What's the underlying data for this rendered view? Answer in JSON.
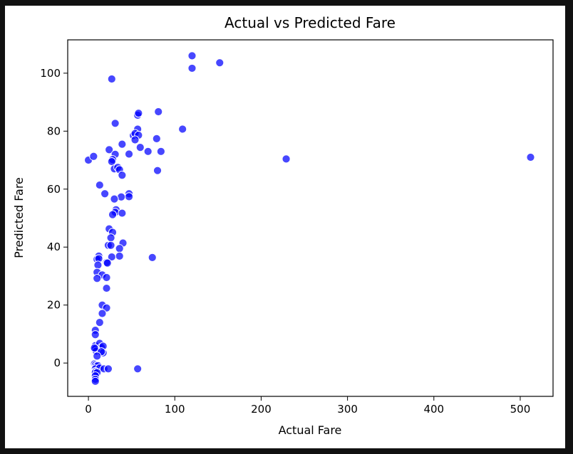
{
  "chart_data": {
    "type": "scatter",
    "title": "Actual vs Predicted Fare",
    "xlabel": "Actual Fare",
    "ylabel": "Predicted Fare",
    "xlim": [
      -24,
      538
    ],
    "ylim": [
      -11.5,
      111.5
    ],
    "xticks": [
      0,
      100,
      200,
      300,
      400,
      500
    ],
    "yticks": [
      0,
      20,
      40,
      60,
      80,
      100
    ],
    "grid": false,
    "legend": "none",
    "point_color": "#0000ff",
    "point_edge_color": "#ffffff",
    "points": [
      [
        0.0,
        70.0
      ],
      [
        6.0,
        71.3
      ],
      [
        120.0,
        106.0
      ],
      [
        120.0,
        101.7
      ],
      [
        152.0,
        103.6
      ],
      [
        27.0,
        98.0
      ],
      [
        31.0,
        82.7
      ],
      [
        57.0,
        85.5
      ],
      [
        58.0,
        86.2
      ],
      [
        81.0,
        86.7
      ],
      [
        109.0,
        80.7
      ],
      [
        57.0,
        80.7
      ],
      [
        52.0,
        78.5
      ],
      [
        54.0,
        79.2
      ],
      [
        58.0,
        78.6
      ],
      [
        54.0,
        77.0
      ],
      [
        79.0,
        77.4
      ],
      [
        39.0,
        75.5
      ],
      [
        60.0,
        74.4
      ],
      [
        24.0,
        73.6
      ],
      [
        69.0,
        73.0
      ],
      [
        84.0,
        73.0
      ],
      [
        47.0,
        72.1
      ],
      [
        31.0,
        72.0
      ],
      [
        28.0,
        70.2
      ],
      [
        27.0,
        69.5
      ],
      [
        229.0,
        70.4
      ],
      [
        512.0,
        71.0
      ],
      [
        30.0,
        67.0
      ],
      [
        34.0,
        67.5
      ],
      [
        36.0,
        66.7
      ],
      [
        80.0,
        66.4
      ],
      [
        39.0,
        64.8
      ],
      [
        13.0,
        61.4
      ],
      [
        19.0,
        58.4
      ],
      [
        47.0,
        58.4
      ],
      [
        47.0,
        57.4
      ],
      [
        38.0,
        57.3
      ],
      [
        30.0,
        56.6
      ],
      [
        32.0,
        52.9
      ],
      [
        31.0,
        52.0
      ],
      [
        39.0,
        51.7
      ],
      [
        28.0,
        51.2
      ],
      [
        24.0,
        46.3
      ],
      [
        28.0,
        45.1
      ],
      [
        26.0,
        43.2
      ],
      [
        40.0,
        41.4
      ],
      [
        23.0,
        40.6
      ],
      [
        26.0,
        40.6
      ],
      [
        36.0,
        39.5
      ],
      [
        12.0,
        36.9
      ],
      [
        36.0,
        36.9
      ],
      [
        27.0,
        36.6
      ],
      [
        74.0,
        36.4
      ],
      [
        10.0,
        35.8
      ],
      [
        12.0,
        36.0
      ],
      [
        21.0,
        34.7
      ],
      [
        22.0,
        34.5
      ],
      [
        11.0,
        33.8
      ],
      [
        10.0,
        31.3
      ],
      [
        16.0,
        30.4
      ],
      [
        21.0,
        29.5
      ],
      [
        10.0,
        29.2
      ],
      [
        21.0,
        25.8
      ],
      [
        16.0,
        20.0
      ],
      [
        21.0,
        19.0
      ],
      [
        16.0,
        17.1
      ],
      [
        13.0,
        14.0
      ],
      [
        8.0,
        11.3
      ],
      [
        8.0,
        9.8
      ],
      [
        8.0,
        6.0
      ],
      [
        13.0,
        6.8
      ],
      [
        15.0,
        5.4
      ],
      [
        17.0,
        5.8
      ],
      [
        8.0,
        4.9
      ],
      [
        9.0,
        4.1
      ],
      [
        17.0,
        3.5
      ],
      [
        15.0,
        3.9
      ],
      [
        10.0,
        2.4
      ],
      [
        7.0,
        -0.3
      ],
      [
        8.0,
        -0.7
      ],
      [
        9.0,
        -1.1
      ],
      [
        11.0,
        -0.9
      ],
      [
        8.0,
        -2.0
      ],
      [
        13.0,
        -1.7
      ],
      [
        18.0,
        -2.0
      ],
      [
        23.0,
        -2.0
      ],
      [
        57.0,
        -2.0
      ],
      [
        8.0,
        -2.9
      ],
      [
        8.0,
        -3.3
      ],
      [
        10.0,
        -3.3
      ],
      [
        8.0,
        -4.4
      ],
      [
        8.0,
        -5.6
      ],
      [
        8.0,
        -6.3
      ],
      [
        7.0,
        5.2
      ]
    ]
  }
}
